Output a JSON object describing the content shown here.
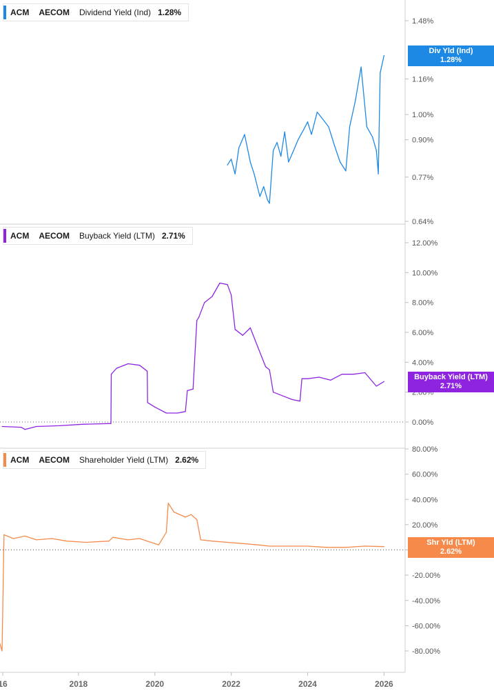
{
  "panels": [
    {
      "ticker": "ACM",
      "company": "AECOM",
      "metric": "Dividend Yield (Ind)",
      "value": "1.28%",
      "color": "#1e88e5",
      "flag_label": "Div Yld (Ind)",
      "flag_value": "1.28%"
    },
    {
      "ticker": "ACM",
      "company": "AECOM",
      "metric": "Buyback Yield (LTM)",
      "value": "2.71%",
      "color": "#8e24e0",
      "flag_label": "Buyback Yield (LTM)",
      "flag_value": "2.71%"
    },
    {
      "ticker": "ACM",
      "company": "AECOM",
      "metric": "Shareholder Yield (LTM)",
      "value": "2.62%",
      "color": "#f58a4b",
      "flag_label": "Shr Yld (LTM)",
      "flag_value": "2.62%"
    }
  ],
  "chart_data": [
    {
      "type": "line",
      "title": "ACM AECOM Dividend Yield (Ind) 1.28%",
      "ylim": [
        0.0064,
        0.0148
      ],
      "yscale": "log",
      "yticks": [
        0.0148,
        0.0116,
        0.01,
        0.009,
        0.0077,
        0.0064
      ],
      "ytick_labels": [
        "1.48%",
        "1.16%",
        "1.00%",
        "0.90%",
        "0.77%",
        "0.64%"
      ],
      "xlim": [
        2016.0,
        2026.3
      ],
      "x": [
        2021.9,
        2022.0,
        2022.1,
        2022.2,
        2022.35,
        2022.5,
        2022.6,
        2022.75,
        2022.85,
        2022.95,
        2023.0,
        2023.1,
        2023.2,
        2023.3,
        2023.4,
        2023.5,
        2023.6,
        2023.75,
        2023.9,
        2024.0,
        2024.1,
        2024.25,
        2024.4,
        2024.55,
        2024.7,
        2024.85,
        2025.0,
        2025.1,
        2025.25,
        2025.4,
        2025.55,
        2025.7,
        2025.8,
        2025.85,
        2025.9,
        2026.0
      ],
      "y": [
        0.0081,
        0.0083,
        0.0078,
        0.0087,
        0.0092,
        0.0082,
        0.0078,
        0.0071,
        0.0074,
        0.007,
        0.0069,
        0.0086,
        0.0089,
        0.0084,
        0.0093,
        0.0082,
        0.0085,
        0.009,
        0.0094,
        0.0097,
        0.0092,
        0.0101,
        0.0098,
        0.0095,
        0.0088,
        0.0082,
        0.0079,
        0.0095,
        0.0106,
        0.0122,
        0.0095,
        0.0091,
        0.0086,
        0.0078,
        0.0119,
        0.0128
      ],
      "grid": false
    },
    {
      "type": "line",
      "title": "ACM AECOM Buyback Yield (LTM) 2.71%",
      "ylim": [
        -2.5,
        12.5
      ],
      "yticks": [
        12,
        10,
        8,
        6,
        4,
        2,
        0
      ],
      "ytick_labels": [
        "12.00%",
        "10.00%",
        "8.00%",
        "6.00%",
        "4.00%",
        "2.00%",
        "0.00%"
      ],
      "xlim": [
        2016.0,
        2026.3
      ],
      "x": [
        2016.0,
        2016.5,
        2016.6,
        2016.9,
        2017.5,
        2018.1,
        2018.85,
        2018.86,
        2019.0,
        2019.3,
        2019.6,
        2019.8,
        2019.81,
        2020.0,
        2020.3,
        2020.6,
        2020.8,
        2020.85,
        2021.0,
        2021.1,
        2021.15,
        2021.3,
        2021.5,
        2021.7,
        2021.9,
        2022.0,
        2022.1,
        2022.3,
        2022.5,
        2022.7,
        2022.9,
        2023.0,
        2023.1,
        2023.4,
        2023.6,
        2023.8,
        2023.85,
        2024.0,
        2024.3,
        2024.6,
        2024.9,
        2025.2,
        2025.5,
        2025.7,
        2025.8,
        2026.0
      ],
      "y": [
        -0.3,
        -0.35,
        -0.5,
        -0.3,
        -0.25,
        -0.15,
        -0.1,
        3.2,
        3.6,
        3.9,
        3.8,
        3.4,
        1.3,
        1.0,
        0.6,
        0.6,
        0.7,
        2.1,
        2.2,
        6.8,
        7.0,
        8.0,
        8.4,
        9.3,
        9.2,
        8.5,
        6.2,
        5.8,
        6.3,
        5.0,
        3.7,
        3.5,
        2.0,
        1.7,
        1.5,
        1.4,
        2.9,
        2.9,
        3.0,
        2.8,
        3.2,
        3.2,
        3.3,
        2.7,
        2.4,
        2.71
      ],
      "grid": false
    },
    {
      "type": "line",
      "title": "ACM AECOM Shareholder Yield (LTM) 2.62%",
      "ylim": [
        -85,
        82
      ],
      "yticks": [
        80,
        60,
        40,
        20,
        0,
        -20,
        -40,
        -60,
        -80
      ],
      "ytick_labels": [
        "80.00%",
        "60.00%",
        "40.00%",
        "20.00%",
        "0.00%",
        "-20.00%",
        "-40.00%",
        "-60.00%",
        "-80.00%"
      ],
      "xlim": [
        2016.0,
        2026.3
      ],
      "x": [
        2015.9,
        2016.0,
        2016.05,
        2016.3,
        2016.6,
        2016.9,
        2017.3,
        2017.7,
        2018.2,
        2018.8,
        2018.9,
        2019.3,
        2019.6,
        2019.8,
        2020.0,
        2020.1,
        2020.3,
        2020.35,
        2020.5,
        2020.8,
        2020.95,
        2021.1,
        2021.2,
        2021.5,
        2021.9,
        2022.3,
        2022.7,
        2023.0,
        2023.5,
        2024.0,
        2024.5,
        2025.0,
        2025.5,
        2026.0
      ],
      "y": [
        -70,
        -80,
        12,
        9,
        11,
        8,
        9,
        7,
        6,
        7,
        10,
        8,
        9,
        7,
        5,
        4,
        14,
        37,
        30,
        26,
        28,
        24,
        8,
        7,
        6,
        5,
        4,
        3,
        3,
        3,
        2,
        2,
        3,
        2.62
      ],
      "grid": false
    }
  ],
  "x_axis": {
    "labels": [
      "16",
      "2018",
      "2020",
      "2022",
      "2024",
      "2026"
    ],
    "values": [
      2016,
      2018,
      2020,
      2022,
      2024,
      2026
    ]
  }
}
